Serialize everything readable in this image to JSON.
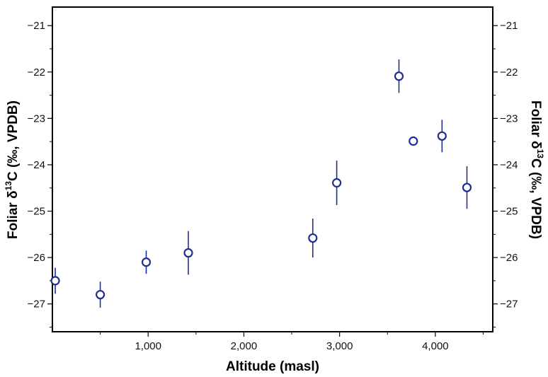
{
  "chart_data": {
    "type": "scatter",
    "xlabel": "Altitude (masl)",
    "ylabel": {
      "prefix": "Foliar δ",
      "superscript": "13",
      "suffix": "C (‰, VPDB)"
    },
    "xlim": [
      0,
      4600
    ],
    "ylim": [
      -27.6,
      -20.6
    ],
    "x_ticks": [
      1000,
      2000,
      3000,
      4000
    ],
    "x_tick_labels": [
      "1,000",
      "2,000",
      "3,000",
      "4,000"
    ],
    "x_minor_ticks": [
      500,
      1500,
      2500,
      3500,
      4500
    ],
    "y_ticks": [
      -27,
      -26,
      -25,
      -24,
      -23,
      -22,
      -21
    ],
    "y_tick_labels": [
      "−27",
      "−26",
      "−25",
      "−24",
      "−23",
      "−22",
      "−21"
    ],
    "y_minor_ticks": [
      -27.5,
      -26.5,
      -25.5,
      -24.5,
      -23.5,
      -22.5,
      -21.5
    ],
    "grid": false,
    "marker": "open-circle",
    "color": "#1f2f8f",
    "points": [
      {
        "x": 30,
        "y": -26.5,
        "err": 0.28
      },
      {
        "x": 500,
        "y": -26.8,
        "err": 0.28
      },
      {
        "x": 980,
        "y": -26.1,
        "err": 0.25
      },
      {
        "x": 1420,
        "y": -25.9,
        "err": 0.47
      },
      {
        "x": 2720,
        "y": -25.58,
        "err": 0.42
      },
      {
        "x": 2970,
        "y": -24.39,
        "err": 0.48
      },
      {
        "x": 3620,
        "y": -22.09,
        "err": 0.36
      },
      {
        "x": 3770,
        "y": -23.49,
        "err": 0.0
      },
      {
        "x": 4070,
        "y": -23.38,
        "err": 0.35
      },
      {
        "x": 4330,
        "y": -24.49,
        "err": 0.46
      }
    ]
  }
}
